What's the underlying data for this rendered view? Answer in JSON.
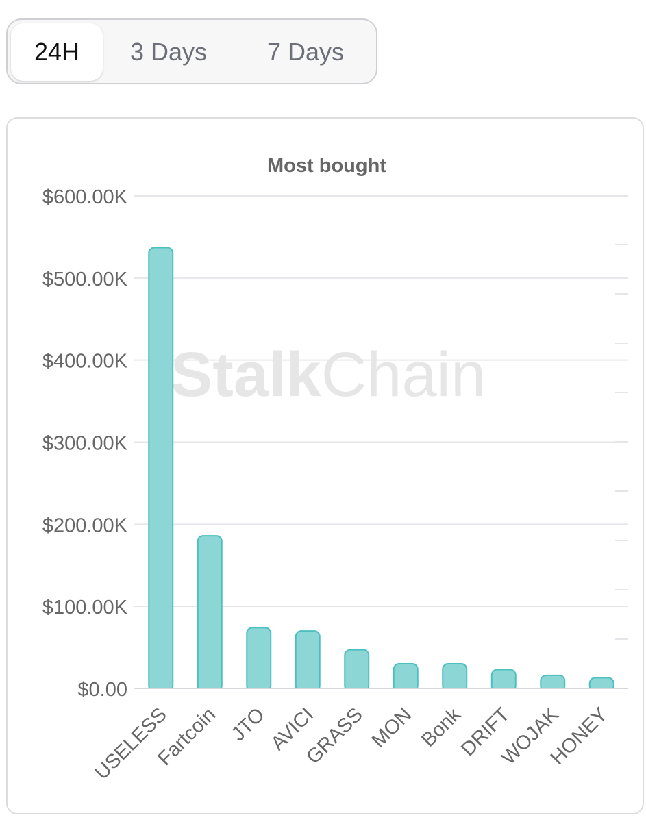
{
  "range_tabs": {
    "items": [
      {
        "label": "24H",
        "active": true
      },
      {
        "label": "3 Days",
        "active": false
      },
      {
        "label": "7 Days",
        "active": false
      }
    ]
  },
  "watermark": "StalkChain",
  "chart_data": {
    "type": "bar",
    "title": "Most bought",
    "xlabel": "",
    "ylabel": "",
    "categories": [
      "USELESS",
      "Fartcoin",
      "JTO",
      "AVICI",
      "GRASS",
      "MON",
      "Bonk",
      "DRIFT",
      "WOJAK",
      "HONEY"
    ],
    "values": [
      537000,
      186000,
      74000,
      70000,
      47000,
      30000,
      30000,
      23000,
      16000,
      13000
    ],
    "ylim": [
      0,
      600000
    ],
    "yticks": [
      0,
      100000,
      200000,
      300000,
      400000,
      500000,
      600000
    ],
    "ytick_labels": [
      "$0.00",
      "$100.00K",
      "$200.00K",
      "$300.00K",
      "$400.00K",
      "$500.00K",
      "$600.00K"
    ],
    "grid": true,
    "bar_color": "#8cd6d6",
    "bar_border_color": "#4cc0c0"
  }
}
